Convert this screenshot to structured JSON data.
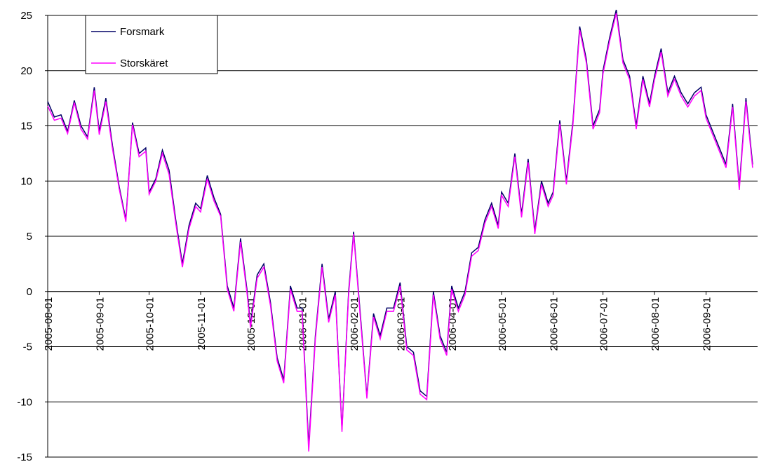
{
  "chart_data": {
    "type": "line",
    "x": [
      "2005-08-01",
      "2005-08-05",
      "2005-08-09",
      "2005-08-13",
      "2005-08-17",
      "2005-08-21",
      "2005-08-25",
      "2005-08-29",
      "2005-09-01",
      "2005-09-05",
      "2005-09-09",
      "2005-09-13",
      "2005-09-17",
      "2005-09-21",
      "2005-09-25",
      "2005-09-29",
      "2005-10-01",
      "2005-10-05",
      "2005-10-09",
      "2005-10-13",
      "2005-10-17",
      "2005-10-21",
      "2005-10-25",
      "2005-10-29",
      "2005-11-01",
      "2005-11-05",
      "2005-11-09",
      "2005-11-13",
      "2005-11-17",
      "2005-11-21",
      "2005-11-25",
      "2005-11-29",
      "2005-12-01",
      "2005-12-05",
      "2005-12-09",
      "2005-12-13",
      "2005-12-17",
      "2005-12-21",
      "2005-12-25",
      "2005-12-29",
      "2006-01-01",
      "2006-01-05",
      "2006-01-09",
      "2006-01-13",
      "2006-01-17",
      "2006-01-21",
      "2006-01-25",
      "2006-01-29",
      "2006-02-01",
      "2006-02-05",
      "2006-02-09",
      "2006-02-13",
      "2006-02-17",
      "2006-02-21",
      "2006-02-25",
      "2006-03-01",
      "2006-03-05",
      "2006-03-09",
      "2006-03-13",
      "2006-03-17",
      "2006-03-21",
      "2006-03-25",
      "2006-03-29",
      "2006-04-01",
      "2006-04-05",
      "2006-04-09",
      "2006-04-13",
      "2006-04-17",
      "2006-04-21",
      "2006-04-25",
      "2006-04-29",
      "2006-05-01",
      "2006-05-05",
      "2006-05-09",
      "2006-05-13",
      "2006-05-17",
      "2006-05-21",
      "2006-05-25",
      "2006-05-29",
      "2006-06-01",
      "2006-06-05",
      "2006-06-09",
      "2006-06-13",
      "2006-06-17",
      "2006-06-21",
      "2006-06-25",
      "2006-06-29",
      "2006-07-01",
      "2006-07-05",
      "2006-07-09",
      "2006-07-13",
      "2006-07-17",
      "2006-07-21",
      "2006-07-25",
      "2006-07-29",
      "2006-08-01",
      "2006-08-05",
      "2006-08-09",
      "2006-08-13",
      "2006-08-17",
      "2006-08-21",
      "2006-08-25",
      "2006-08-29",
      "2006-09-01",
      "2006-09-05",
      "2006-09-09",
      "2006-09-13",
      "2006-09-17",
      "2006-09-21",
      "2006-09-25",
      "2006-09-29"
    ],
    "series": [
      {
        "name": "Forsmark",
        "color": "#000066",
        "values": [
          17.2,
          15.8,
          16.0,
          14.5,
          17.3,
          15.0,
          14.0,
          18.5,
          14.5,
          17.5,
          13.2,
          9.5,
          6.5,
          15.3,
          12.5,
          13.0,
          9.0,
          10.2,
          12.8,
          11.0,
          6.5,
          2.5,
          6.0,
          8.0,
          7.5,
          10.5,
          8.5,
          7.0,
          0.5,
          -1.5,
          4.8,
          0.0,
          -3.0,
          1.5,
          2.5,
          -1.0,
          -6.0,
          -8.0,
          0.5,
          -1.5,
          -1.5,
          -14.0,
          -4.0,
          2.5,
          -2.5,
          0.0,
          -12.5,
          0.0,
          5.4,
          -2.0,
          -9.5,
          -2.0,
          -4.0,
          -1.5,
          -1.5,
          0.8,
          -5.0,
          -5.5,
          -9.0,
          -9.5,
          0.0,
          -4.0,
          -5.5,
          0.5,
          -1.5,
          0.0,
          3.5,
          4.0,
          6.5,
          8.0,
          6.0,
          9.0,
          8.0,
          12.5,
          7.0,
          12.0,
          5.5,
          10.0,
          8.0,
          9.0,
          15.5,
          10.0,
          15.5,
          24.0,
          21.0,
          15.0,
          16.5,
          20.0,
          23.0,
          25.5,
          21.0,
          19.5,
          15.0,
          19.5,
          17.0,
          19.5,
          22.0,
          18.0,
          19.5,
          18.0,
          17.0,
          18.0,
          18.5,
          16.0,
          14.5,
          13.0,
          11.5,
          17.0,
          9.5,
          17.5,
          11.5
        ]
      },
      {
        "name": "Storskäret",
        "color": "#ff00ff",
        "values": [
          16.8,
          15.5,
          15.7,
          14.3,
          17.1,
          14.7,
          13.8,
          18.2,
          14.2,
          17.2,
          12.9,
          9.3,
          6.3,
          15.1,
          12.2,
          12.7,
          8.8,
          10.0,
          12.5,
          10.6,
          6.2,
          2.2,
          5.7,
          7.7,
          7.2,
          10.2,
          8.2,
          6.8,
          0.2,
          -1.8,
          4.5,
          -0.3,
          -3.3,
          1.2,
          2.2,
          -1.3,
          -6.3,
          -8.3,
          0.2,
          -1.8,
          -1.8,
          -14.5,
          -4.3,
          2.2,
          -2.8,
          -0.3,
          -12.7,
          -0.3,
          5.2,
          -2.3,
          -9.7,
          -2.3,
          -4.3,
          -1.8,
          -1.8,
          0.5,
          -5.3,
          -5.8,
          -9.3,
          -9.8,
          -0.3,
          -4.3,
          -5.8,
          0.2,
          -1.8,
          -0.3,
          3.2,
          3.7,
          6.2,
          7.7,
          5.7,
          8.7,
          7.7,
          12.2,
          6.7,
          11.7,
          5.2,
          9.7,
          7.7,
          8.7,
          15.2,
          9.7,
          15.2,
          23.7,
          20.7,
          14.7,
          16.2,
          19.7,
          22.7,
          25.2,
          20.7,
          19.2,
          14.7,
          19.2,
          16.7,
          19.2,
          21.7,
          17.7,
          19.2,
          17.7,
          16.7,
          17.7,
          18.2,
          15.7,
          14.2,
          12.7,
          11.2,
          16.7,
          9.2,
          17.2,
          11.2
        ]
      }
    ],
    "ylim": [
      -15,
      25
    ],
    "yticks": [
      -15,
      -10,
      -5,
      0,
      5,
      10,
      15,
      20,
      25
    ],
    "xticks": [
      "2005-08-01",
      "2005-09-01",
      "2005-10-01",
      "2005-11-01",
      "2005-12-01",
      "2006-01-01",
      "2006-02-01",
      "2006-03-01",
      "2006-04-01",
      "2006-05-01",
      "2006-06-01",
      "2006-07-01",
      "2006-08-01",
      "2006-09-01"
    ],
    "grid": true,
    "legend": "upper left"
  }
}
